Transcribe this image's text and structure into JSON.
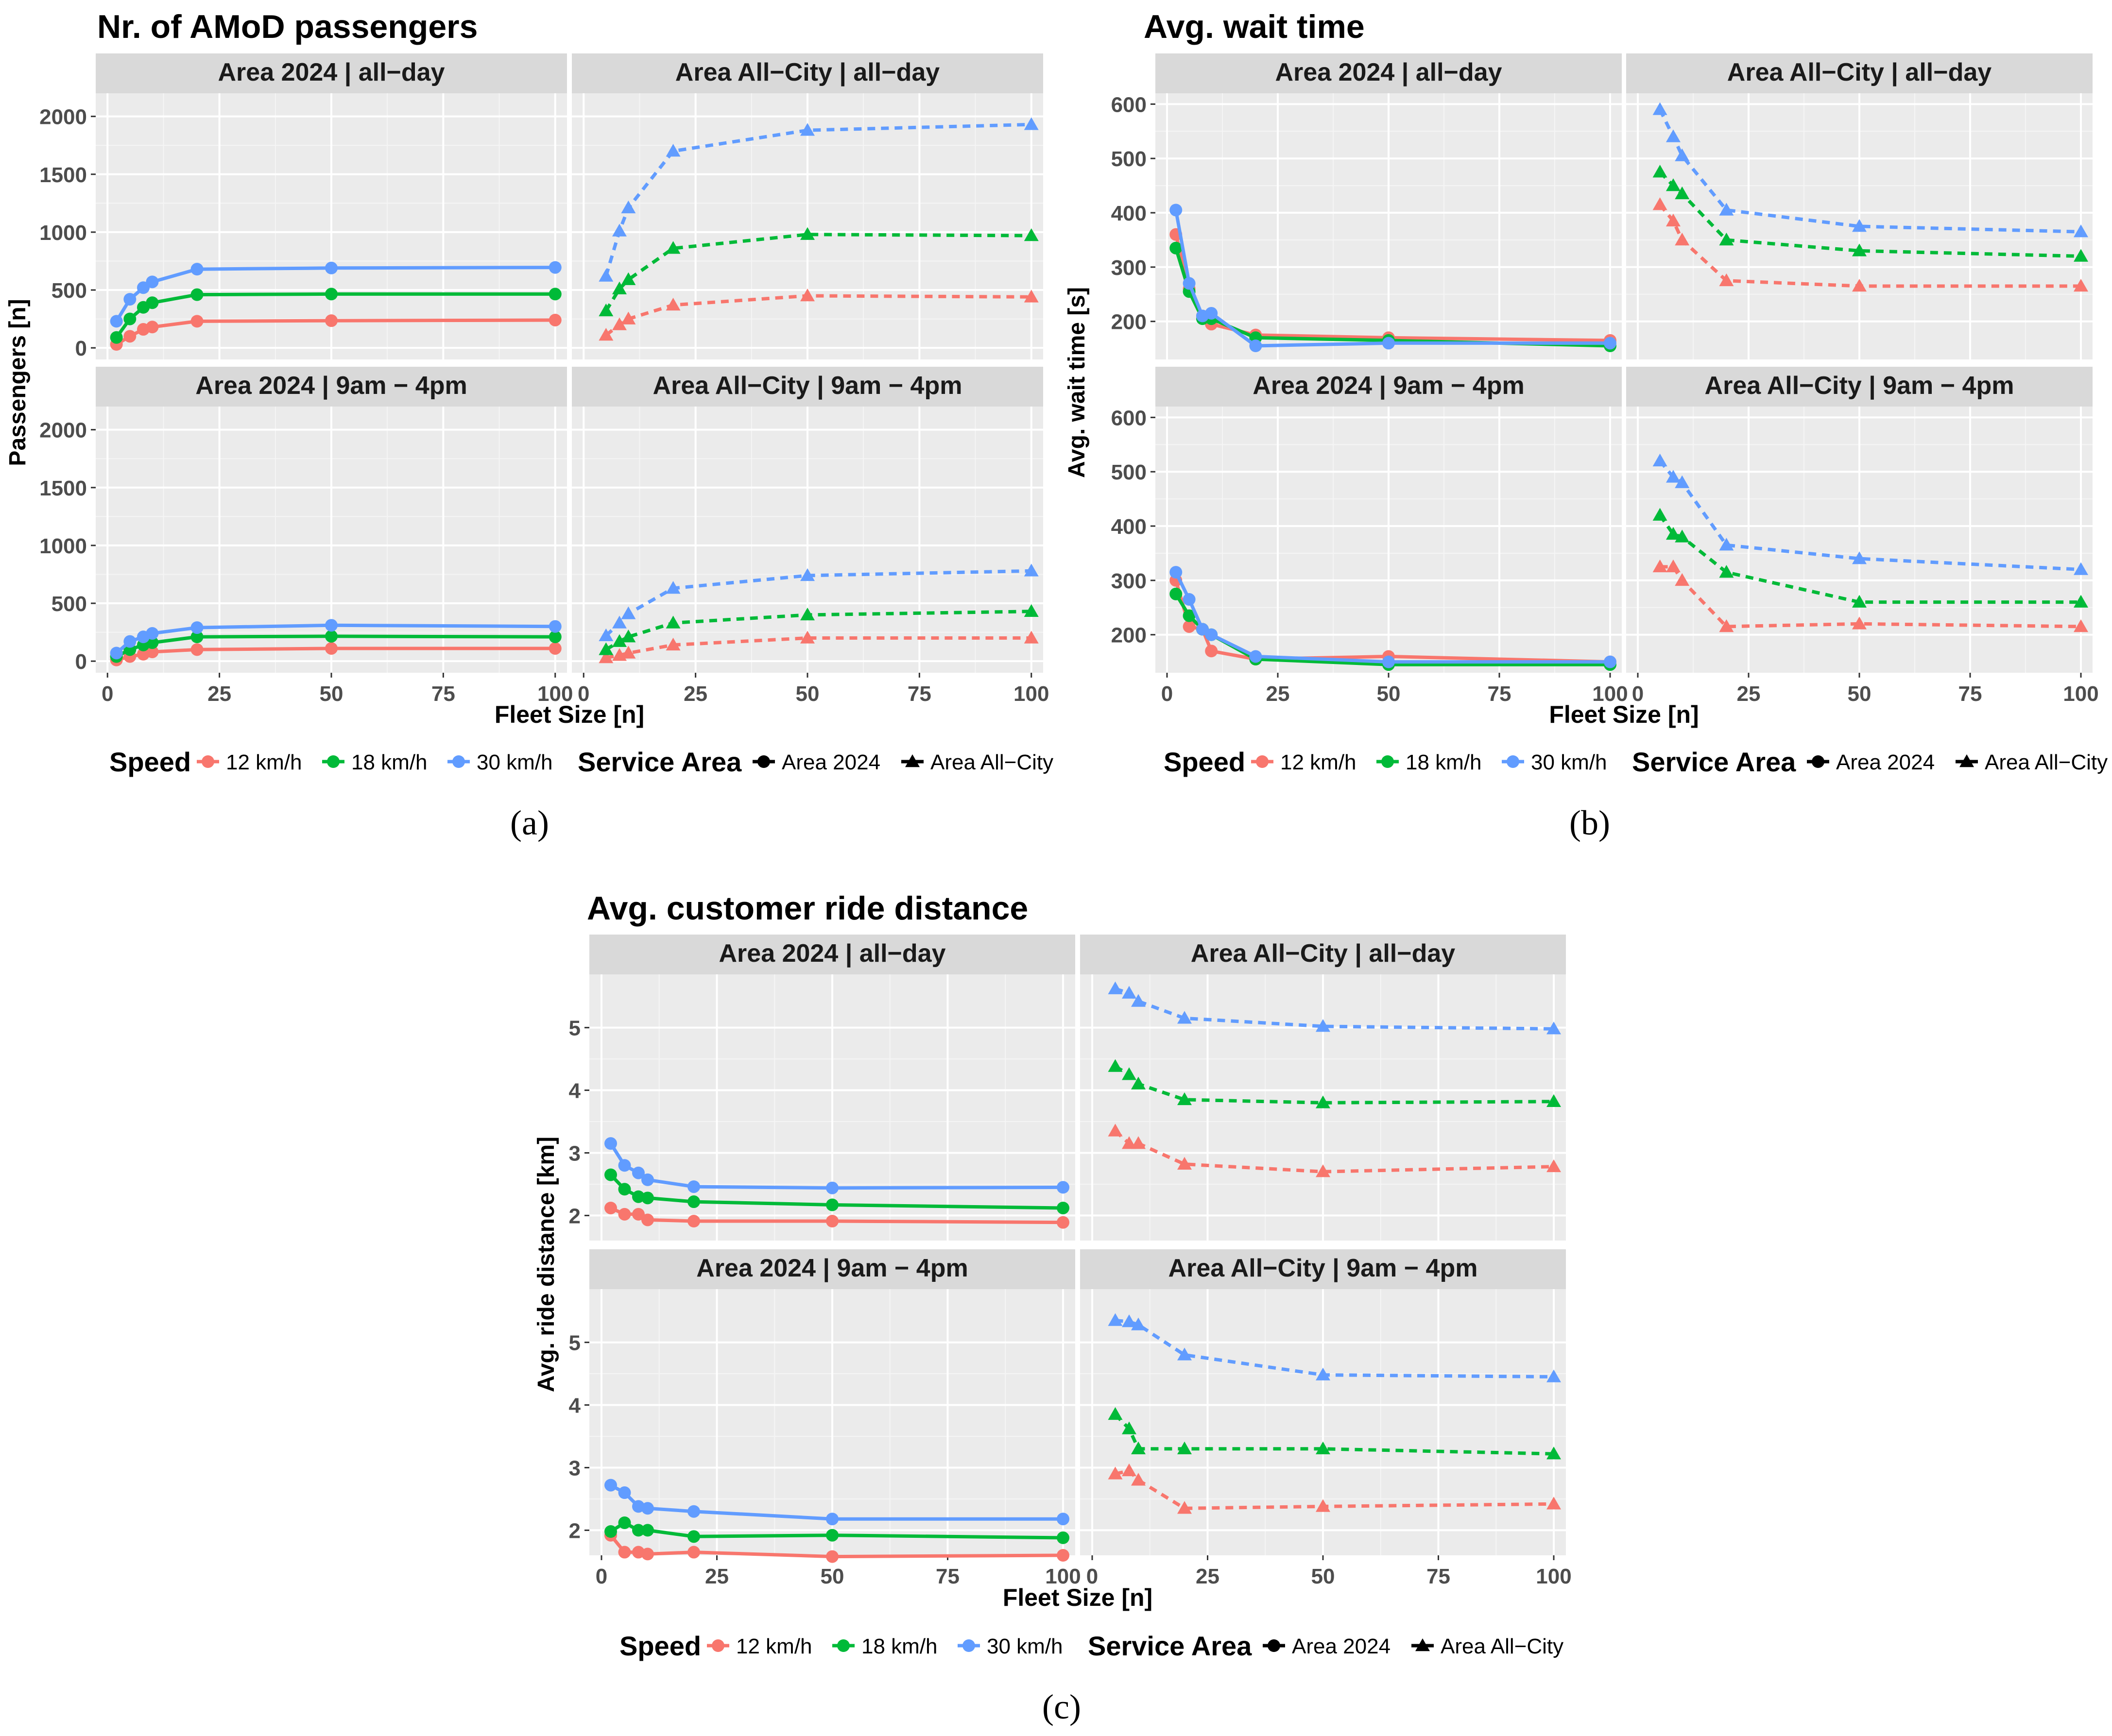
{
  "figure": {
    "a_label": "(a)",
    "b_label": "(b)",
    "c_label": "(c)"
  },
  "colors": {
    "speed_12": "#F8766D",
    "speed_18": "#00BA38",
    "speed_30": "#619CFF"
  },
  "legend": {
    "speed_title": "Speed",
    "speed_items": [
      "12 km/h",
      "18 km/h",
      "30 km/h"
    ],
    "area_title": "Service Area",
    "area_items": [
      "Area 2024",
      "Area All−City"
    ]
  },
  "chart_data": [
    {
      "type": "line",
      "title": "Nr. of AMoD passengers",
      "xlabel": "Fleet Size [n]",
      "ylabel": "Passengers [n]",
      "xlim": [
        0,
        100
      ],
      "ylim": [
        -100,
        2200
      ],
      "xticks": [
        0,
        25,
        50,
        75,
        100
      ],
      "yticks": [
        0,
        500,
        1000,
        1500,
        2000
      ],
      "ytick_labels": [
        "0",
        "500",
        "1000",
        "1500",
        "2000"
      ],
      "panels": [
        {
          "label": "Area 2024 | all−day",
          "area": "Area 2024",
          "series": [
            {
              "name": "12 km/h",
              "x": [
                2,
                5,
                8,
                10,
                20,
                50,
                100
              ],
              "y": [
                30,
                100,
                160,
                180,
                230,
                235,
                240
              ]
            },
            {
              "name": "18 km/h",
              "x": [
                2,
                5,
                8,
                10,
                20,
                50,
                100
              ],
              "y": [
                90,
                250,
                350,
                390,
                460,
                465,
                465
              ]
            },
            {
              "name": "30 km/h",
              "x": [
                2,
                5,
                8,
                10,
                20,
                50,
                100
              ],
              "y": [
                230,
                420,
                520,
                570,
                680,
                690,
                695
              ]
            }
          ]
        },
        {
          "label": "Area All−City | all−day",
          "area": "Area All−City",
          "series": [
            {
              "name": "12 km/h",
              "x": [
                5,
                8,
                10,
                20,
                50,
                100
              ],
              "y": [
                110,
                200,
                250,
                370,
                450,
                440
              ]
            },
            {
              "name": "18 km/h",
              "x": [
                5,
                8,
                10,
                20,
                50,
                100
              ],
              "y": [
                320,
                510,
                590,
                860,
                980,
                970
              ]
            },
            {
              "name": "30 km/h",
              "x": [
                5,
                8,
                10,
                20,
                50,
                100
              ],
              "y": [
                620,
                1010,
                1210,
                1700,
                1880,
                1930
              ]
            }
          ]
        },
        {
          "label": "Area 2024 | 9am − 4pm",
          "area": "Area 2024",
          "series": [
            {
              "name": "12 km/h",
              "x": [
                2,
                5,
                8,
                10,
                20,
                50,
                100
              ],
              "y": [
                10,
                40,
                60,
                80,
                100,
                110,
                110
              ]
            },
            {
              "name": "18 km/h",
              "x": [
                2,
                5,
                8,
                10,
                20,
                50,
                100
              ],
              "y": [
                40,
                100,
                140,
                160,
                210,
                215,
                210
              ]
            },
            {
              "name": "30 km/h",
              "x": [
                2,
                5,
                8,
                10,
                20,
                50,
                100
              ],
              "y": [
                70,
                170,
                210,
                240,
                290,
                310,
                300
              ]
            }
          ]
        },
        {
          "label": "Area All−City | 9am − 4pm",
          "area": "Area All−City",
          "series": [
            {
              "name": "12 km/h",
              "x": [
                5,
                8,
                10,
                20,
                50,
                100
              ],
              "y": [
                30,
                50,
                70,
                140,
                200,
                200
              ]
            },
            {
              "name": "18 km/h",
              "x": [
                5,
                8,
                10,
                20,
                50,
                100
              ],
              "y": [
                100,
                170,
                210,
                330,
                400,
                430
              ]
            },
            {
              "name": "30 km/h",
              "x": [
                5,
                8,
                10,
                20,
                50,
                100
              ],
              "y": [
                220,
                330,
                410,
                630,
                740,
                780
              ]
            }
          ]
        }
      ]
    },
    {
      "type": "line",
      "title": "Avg. wait time",
      "xlabel": "Fleet Size [n]",
      "ylabel": "Avg. wait time [s]",
      "xlim": [
        0,
        100
      ],
      "ylim": [
        130,
        620
      ],
      "xticks": [
        0,
        25,
        50,
        75,
        100
      ],
      "yticks": [
        200,
        300,
        400,
        500,
        600
      ],
      "ytick_labels": [
        "200",
        "300",
        "400",
        "500",
        "600"
      ],
      "panels": [
        {
          "label": "Area 2024 | all−day",
          "area": "Area 2024",
          "series": [
            {
              "name": "12 km/h",
              "x": [
                2,
                5,
                8,
                10,
                20,
                50,
                100
              ],
              "y": [
                360,
                260,
                210,
                195,
                175,
                170,
                165
              ]
            },
            {
              "name": "18 km/h",
              "x": [
                2,
                5,
                8,
                10,
                20,
                50,
                100
              ],
              "y": [
                335,
                255,
                205,
                205,
                170,
                165,
                155
              ]
            },
            {
              "name": "30 km/h",
              "x": [
                2,
                5,
                8,
                10,
                20,
                50,
                100
              ],
              "y": [
                405,
                270,
                210,
                215,
                155,
                160,
                160
              ]
            }
          ]
        },
        {
          "label": "Area All−City | all−day",
          "area": "Area All−City",
          "series": [
            {
              "name": "12 km/h",
              "x": [
                5,
                8,
                10,
                20,
                50,
                100
              ],
              "y": [
                415,
                385,
                350,
                275,
                265,
                265
              ]
            },
            {
              "name": "18 km/h",
              "x": [
                5,
                8,
                10,
                20,
                50,
                100
              ],
              "y": [
                475,
                450,
                435,
                350,
                330,
                320
              ]
            },
            {
              "name": "30 km/h",
              "x": [
                5,
                8,
                10,
                20,
                50,
                100
              ],
              "y": [
                590,
                540,
                505,
                405,
                375,
                365
              ]
            }
          ]
        },
        {
          "label": "Area 2024 | 9am − 4pm",
          "area": "Area 2024",
          "series": [
            {
              "name": "12 km/h",
              "x": [
                2,
                5,
                8,
                10,
                20,
                50,
                100
              ],
              "y": [
                300,
                215,
                210,
                170,
                155,
                160,
                150
              ]
            },
            {
              "name": "18 km/h",
              "x": [
                2,
                5,
                8,
                10,
                20,
                50,
                100
              ],
              "y": [
                275,
                235,
                210,
                200,
                155,
                145,
                145
              ]
            },
            {
              "name": "30 km/h",
              "x": [
                2,
                5,
                8,
                10,
                20,
                50,
                100
              ],
              "y": [
                315,
                265,
                210,
                200,
                160,
                150,
                150
              ]
            }
          ]
        },
        {
          "label": "Area All−City | 9am − 4pm",
          "area": "Area All−City",
          "series": [
            {
              "name": "12 km/h",
              "x": [
                5,
                8,
                10,
                20,
                50,
                100
              ],
              "y": [
                325,
                325,
                300,
                215,
                220,
                215
              ]
            },
            {
              "name": "18 km/h",
              "x": [
                5,
                8,
                10,
                20,
                50,
                100
              ],
              "y": [
                420,
                385,
                380,
                315,
                260,
                260
              ]
            },
            {
              "name": "30 km/h",
              "x": [
                5,
                8,
                10,
                20,
                50,
                100
              ],
              "y": [
                520,
                490,
                480,
                365,
                340,
                320
              ]
            }
          ]
        }
      ]
    },
    {
      "type": "line",
      "title": "Avg. customer ride distance",
      "xlabel": "Fleet Size [n]",
      "ylabel": "Avg. ride distance [km]",
      "xlim": [
        0,
        100
      ],
      "ylim": [
        1.6,
        5.85
      ],
      "xticks": [
        0,
        25,
        50,
        75,
        100
      ],
      "yticks": [
        2,
        3,
        4,
        5
      ],
      "ytick_labels": [
        "2",
        "3",
        "4",
        "5"
      ],
      "panels": [
        {
          "label": "Area 2024 | all−day",
          "area": "Area 2024",
          "series": [
            {
              "name": "12 km/h",
              "x": [
                2,
                5,
                8,
                10,
                20,
                50,
                100
              ],
              "y": [
                2.12,
                2.02,
                2.02,
                1.93,
                1.91,
                1.91,
                1.89
              ]
            },
            {
              "name": "18 km/h",
              "x": [
                2,
                5,
                8,
                10,
                20,
                50,
                100
              ],
              "y": [
                2.65,
                2.42,
                2.3,
                2.28,
                2.22,
                2.17,
                2.12
              ]
            },
            {
              "name": "30 km/h",
              "x": [
                2,
                5,
                8,
                10,
                20,
                50,
                100
              ],
              "y": [
                3.15,
                2.8,
                2.68,
                2.57,
                2.46,
                2.44,
                2.45
              ]
            }
          ]
        },
        {
          "label": "Area All−City | all−day",
          "area": "Area All−City",
          "series": [
            {
              "name": "12 km/h",
              "x": [
                5,
                8,
                10,
                20,
                50,
                100
              ],
              "y": [
                3.35,
                3.15,
                3.15,
                2.82,
                2.7,
                2.78
              ]
            },
            {
              "name": "18 km/h",
              "x": [
                5,
                8,
                10,
                20,
                50,
                100
              ],
              "y": [
                4.38,
                4.25,
                4.1,
                3.85,
                3.8,
                3.82
              ]
            },
            {
              "name": "30 km/h",
              "x": [
                5,
                8,
                10,
                20,
                50,
                100
              ],
              "y": [
                5.62,
                5.55,
                5.42,
                5.15,
                5.02,
                4.98
              ]
            }
          ]
        },
        {
          "label": "Area 2024 | 9am − 4pm",
          "area": "Area 2024",
          "series": [
            {
              "name": "12 km/h",
              "x": [
                2,
                5,
                8,
                10,
                20,
                50,
                100
              ],
              "y": [
                1.92,
                1.65,
                1.65,
                1.62,
                1.65,
                1.58,
                1.6
              ]
            },
            {
              "name": "18 km/h",
              "x": [
                2,
                5,
                8,
                10,
                20,
                50,
                100
              ],
              "y": [
                1.98,
                2.12,
                2.0,
                2.0,
                1.9,
                1.92,
                1.88
              ]
            },
            {
              "name": "30 km/h",
              "x": [
                2,
                5,
                8,
                10,
                20,
                50,
                100
              ],
              "y": [
                2.72,
                2.6,
                2.38,
                2.35,
                2.3,
                2.18,
                2.18
              ]
            }
          ]
        },
        {
          "label": "Area All−City | 9am − 4pm",
          "area": "Area All−City",
          "series": [
            {
              "name": "12 km/h",
              "x": [
                5,
                8,
                10,
                20,
                50,
                100
              ],
              "y": [
                2.9,
                2.95,
                2.8,
                2.35,
                2.38,
                2.42
              ]
            },
            {
              "name": "18 km/h",
              "x": [
                5,
                8,
                10,
                20,
                50,
                100
              ],
              "y": [
                3.85,
                3.62,
                3.3,
                3.3,
                3.3,
                3.22
              ]
            },
            {
              "name": "30 km/h",
              "x": [
                5,
                8,
                10,
                20,
                50,
                100
              ],
              "y": [
                5.35,
                5.33,
                5.28,
                4.8,
                4.48,
                4.45
              ]
            }
          ]
        }
      ]
    }
  ]
}
